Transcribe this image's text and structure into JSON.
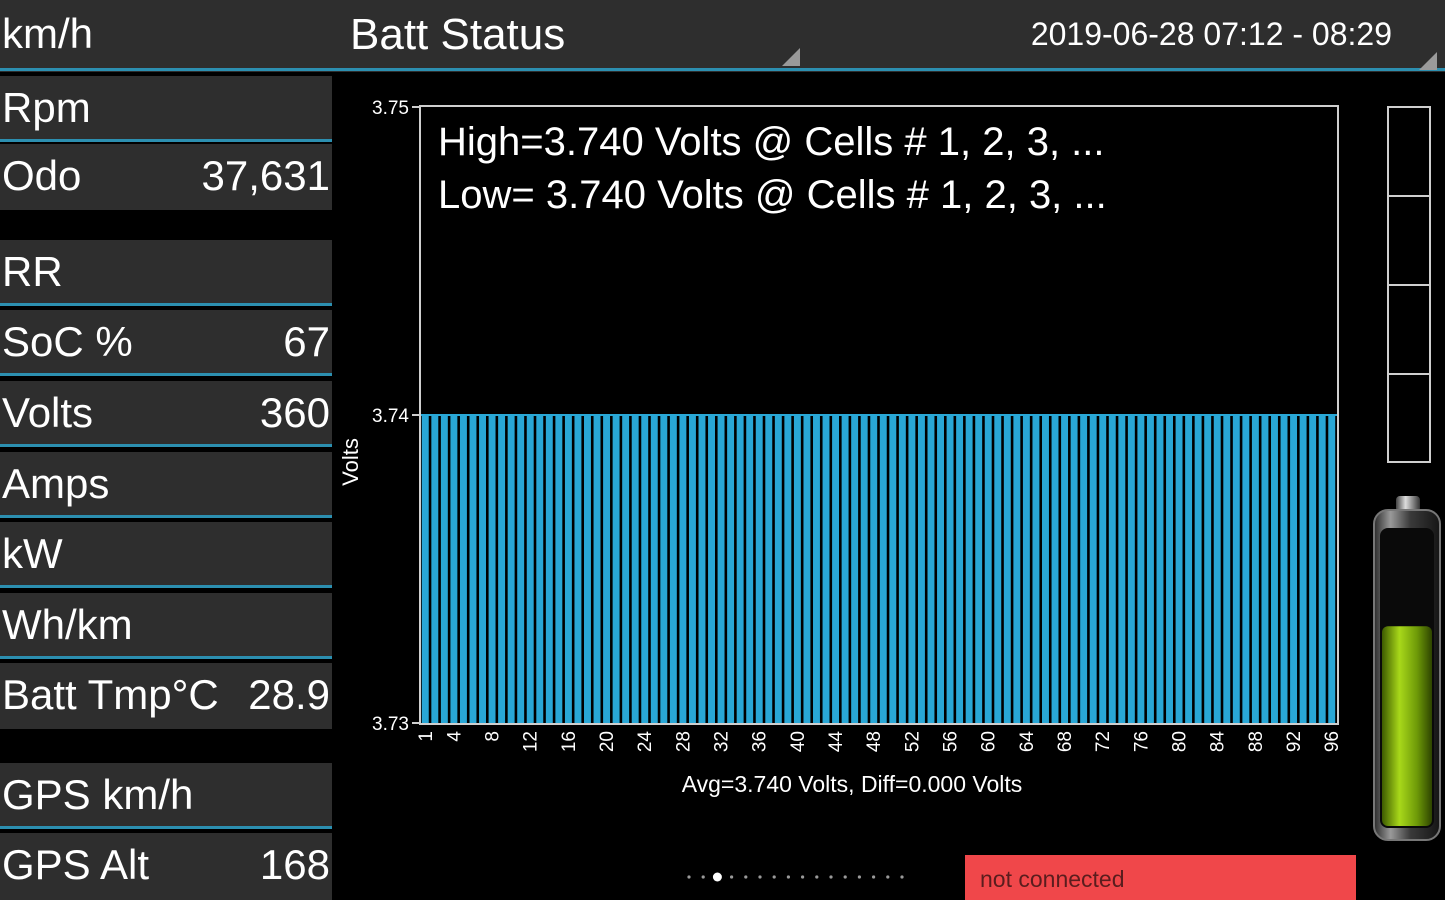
{
  "header": {
    "speed_label": "km/h",
    "title": "Batt Status",
    "datetime": "2019-06-28 07:12 - 08:29"
  },
  "panels_group1": [
    {
      "label": "Rpm",
      "value": ""
    },
    {
      "label": "Odo",
      "value": "37,631"
    }
  ],
  "panels_group2": [
    {
      "label": "RR",
      "value": ""
    },
    {
      "label": "SoC %",
      "value": "67"
    },
    {
      "label": "Volts",
      "value": "360"
    },
    {
      "label": "Amps",
      "value": ""
    },
    {
      "label": "kW",
      "value": ""
    },
    {
      "label": "Wh/km",
      "value": ""
    },
    {
      "label": "Batt Tmp°C",
      "value": "28.9"
    }
  ],
  "panels_group3": [
    {
      "label": "GPS km/h",
      "value": ""
    },
    {
      "label": "GPS Alt",
      "value": "168"
    }
  ],
  "status": {
    "connection": "not connected"
  },
  "pager": {
    "count": 16,
    "active": 2
  },
  "battery": {
    "soc_fraction": 0.67
  },
  "colors": {
    "accent": "#2c8fb0",
    "bar": "#29a7d6",
    "panel_bg": "#2e2e2e",
    "status_bg": "#f0474a"
  },
  "chart_data": {
    "type": "bar",
    "ylabel": "Volts",
    "ylim": [
      3.73,
      3.75
    ],
    "yticks": [
      "3.75",
      "3.74",
      "3.73"
    ],
    "xticks": [
      "1",
      "4",
      "8",
      "12",
      "16",
      "20",
      "24",
      "28",
      "32",
      "36",
      "40",
      "44",
      "48",
      "52",
      "56",
      "60",
      "64",
      "68",
      "72",
      "76",
      "80",
      "84",
      "88",
      "92",
      "96"
    ],
    "cell_count": 96,
    "value_all_cells": 3.74,
    "annotation_high": "High=3.740 Volts @ Cells # 1, 2, 3,  ...",
    "annotation_low": "Low= 3.740 Volts @ Cells # 1, 2, 3,  ...",
    "summary": "Avg=3.740 Volts, Diff=0.000 Volts"
  }
}
